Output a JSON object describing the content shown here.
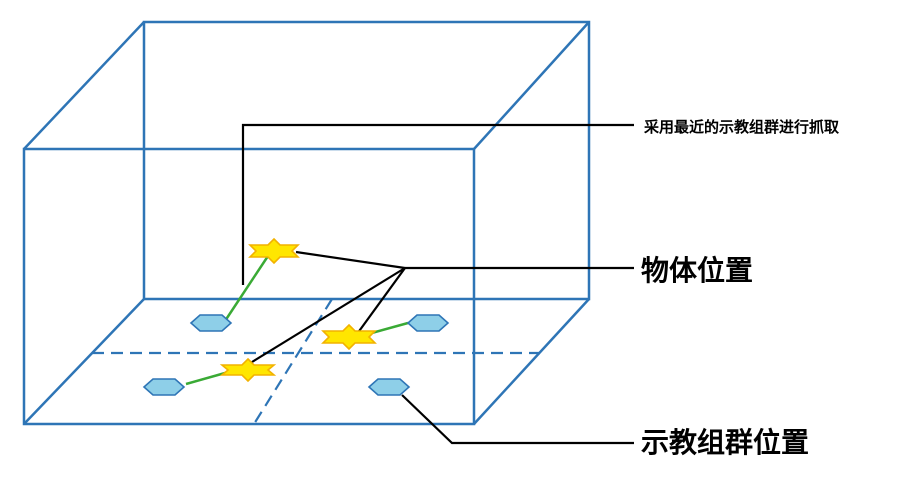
{
  "labels": {
    "grasp_strategy": "采用最近的示教组群进行抓取",
    "object_position": "物体位置",
    "demo_group_position": "示教组群位置"
  },
  "colors": {
    "box_edge": "#2e75b6",
    "demo_marker_fill": "#8ecfe8",
    "object_marker_fill": "#ffe600",
    "link_line": "#3aaa35",
    "callout_line": "#000000"
  },
  "icons": {
    "demo_marker": "hexagon",
    "object_marker": "six-point-star"
  }
}
